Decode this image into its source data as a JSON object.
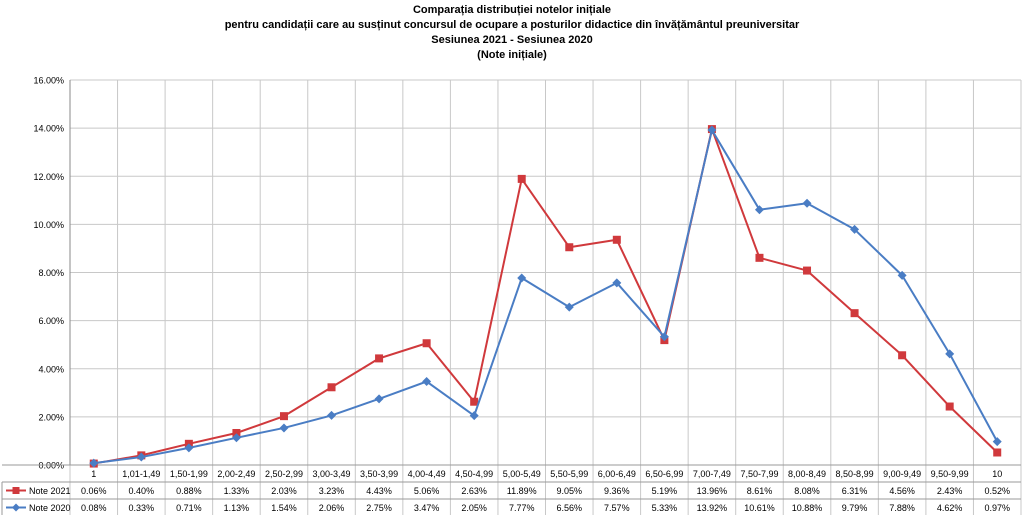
{
  "chart_data": {
    "type": "line",
    "title_lines": [
      "Comparația distribuției notelor inițiale",
      "pentru candidații care au susținut concursul de ocupare a posturilor didactice din învățământul preuniversitar",
      "Sesiunea 2021  - Sesiunea 2020",
      "(Note inițiale)"
    ],
    "categories": [
      "1",
      "1,01-1,49",
      "1,50-1,99",
      "2,00-2,49",
      "2,50-2,99",
      "3,00-3,49",
      "3,50-3,99",
      "4,00-4,49",
      "4,50-4,99",
      "5,00-5,49",
      "5,50-5,99",
      "6,00-6,49",
      "6,50-6,99",
      "7,00-7,49",
      "7,50-7,99",
      "8,00-8,49",
      "8,50-8,99",
      "9,00-9,49",
      "9,50-9,99",
      "10"
    ],
    "ylim": [
      0,
      16
    ],
    "yticks": [
      "0.00%",
      "2.00%",
      "4.00%",
      "6.00%",
      "8.00%",
      "10.00%",
      "12.00%",
      "14.00%",
      "16.00%"
    ],
    "grid": true,
    "legend": "data-table",
    "series": [
      {
        "name": "Note 2021",
        "color": "#d0393c",
        "marker": "square",
        "values": [
          0.06,
          0.4,
          0.88,
          1.33,
          2.03,
          3.23,
          4.43,
          5.06,
          2.63,
          11.89,
          9.05,
          9.36,
          5.19,
          13.96,
          8.61,
          8.08,
          6.31,
          4.56,
          2.43,
          0.52
        ],
        "labels": [
          "0.06%",
          "0.40%",
          "0.88%",
          "1.33%",
          "2.03%",
          "3.23%",
          "4.43%",
          "5.06%",
          "2.63%",
          "11.89%",
          "9.05%",
          "9.36%",
          "5.19%",
          "13.96%",
          "8.61%",
          "8.08%",
          "6.31%",
          "4.56%",
          "2.43%",
          "0.52%"
        ]
      },
      {
        "name": "Note 2020",
        "color": "#4a7dc4",
        "marker": "diamond",
        "values": [
          0.08,
          0.33,
          0.71,
          1.13,
          1.54,
          2.06,
          2.75,
          3.47,
          2.05,
          7.77,
          6.56,
          7.57,
          5.33,
          13.92,
          10.61,
          10.88,
          9.79,
          7.88,
          4.62,
          0.97
        ],
        "labels": [
          "0.08%",
          "0.33%",
          "0.71%",
          "1.13%",
          "1.54%",
          "2.06%",
          "2.75%",
          "3.47%",
          "2.05%",
          "7.77%",
          "6.56%",
          "7.57%",
          "5.33%",
          "13.92%",
          "10.61%",
          "10.88%",
          "9.79%",
          "7.88%",
          "4.62%",
          "0.97%"
        ]
      }
    ]
  }
}
